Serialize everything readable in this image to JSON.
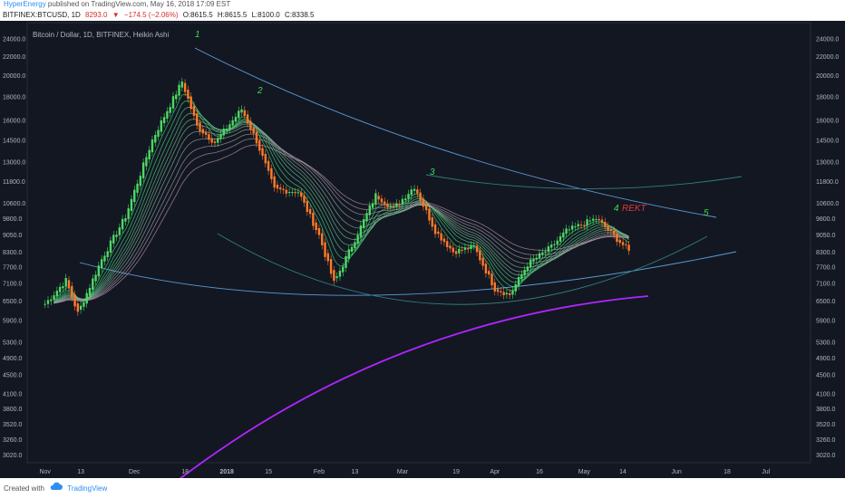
{
  "header": {
    "author": "HyperEnergy",
    "published": "published on TradingView.com, May 16, 2018 17:09 EST"
  },
  "info": {
    "symbol": "BITFINEX:BTCUSD, 1D",
    "price": "8293.0",
    "change": "−174.5 (−2.06%)",
    "open": "O:8615.5",
    "high": "H:8615.5",
    "low": "L:8100.0",
    "close": "C:8338.5"
  },
  "chart": {
    "legend": "Bitcoin / Dollar, 1D, BITFINEX, Heikin Ashi",
    "colors": {
      "background": "#131722",
      "up": "#4cd964",
      "down": "#ff7a29",
      "wave_label": "#3fd94f",
      "rekt": "#e53935",
      "ma200": "#b026ff",
      "trendline": "#5b9bd5",
      "axis_text": "#b2b5be"
    },
    "annotations": [
      {
        "text": "1"
      },
      {
        "text": "2"
      },
      {
        "text": "3"
      },
      {
        "text": "4"
      },
      {
        "text": "5"
      },
      {
        "text": "REKT"
      }
    ]
  },
  "footer": {
    "created_with": "Created with",
    "brand": "TradingView"
  },
  "chart_data": {
    "type": "candlestick",
    "style": "Heikin Ashi",
    "scale": "log",
    "ylim": [
      2900,
      26000
    ],
    "y_ticks": [
      "24000.0",
      "22000.0",
      "20000.0",
      "18000.0",
      "16000.0",
      "14500.0",
      "13000.0",
      "11800.0",
      "10600.0",
      "9800.0",
      "9050.0",
      "8300.0",
      "7700.0",
      "7100.0",
      "6500.0",
      "5900.0",
      "5300.0",
      "4900.0",
      "4500.0",
      "4100.0",
      "3800.0",
      "3520.0",
      "3260.0",
      "3020.0"
    ],
    "x_ticks": [
      "Nov",
      "13",
      "Dec",
      "18",
      "2018",
      "15",
      "Feb",
      "13",
      "Mar",
      "19",
      "Apr",
      "16",
      "May",
      "14",
      "Jun",
      "18",
      "Jul"
    ],
    "closes": [
      {
        "date": "2017-11-01",
        "value": 6400
      },
      {
        "date": "2017-11-08",
        "value": 7200
      },
      {
        "date": "2017-11-12",
        "value": 6100
      },
      {
        "date": "2017-11-20",
        "value": 8000
      },
      {
        "date": "2017-11-28",
        "value": 9900
      },
      {
        "date": "2017-12-07",
        "value": 14500
      },
      {
        "date": "2017-12-12",
        "value": 16800
      },
      {
        "date": "2017-12-17",
        "value": 19400
      },
      {
        "date": "2017-12-22",
        "value": 15500
      },
      {
        "date": "2017-12-28",
        "value": 14300
      },
      {
        "date": "2018-01-06",
        "value": 16900
      },
      {
        "date": "2018-01-11",
        "value": 14400
      },
      {
        "date": "2018-01-17",
        "value": 11300
      },
      {
        "date": "2018-01-25",
        "value": 11200
      },
      {
        "date": "2018-02-01",
        "value": 9000
      },
      {
        "date": "2018-02-06",
        "value": 7100
      },
      {
        "date": "2018-02-11",
        "value": 8300
      },
      {
        "date": "2018-02-20",
        "value": 11000
      },
      {
        "date": "2018-02-26",
        "value": 10300
      },
      {
        "date": "2018-03-05",
        "value": 11500
      },
      {
        "date": "2018-03-12",
        "value": 9200
      },
      {
        "date": "2018-03-18",
        "value": 8300
      },
      {
        "date": "2018-03-25",
        "value": 8500
      },
      {
        "date": "2018-04-01",
        "value": 6900
      },
      {
        "date": "2018-04-06",
        "value": 6700
      },
      {
        "date": "2018-04-12",
        "value": 7800
      },
      {
        "date": "2018-04-20",
        "value": 8500
      },
      {
        "date": "2018-04-25",
        "value": 9200
      },
      {
        "date": "2018-05-05",
        "value": 9800
      },
      {
        "date": "2018-05-10",
        "value": 9100
      },
      {
        "date": "2018-05-16",
        "value": 8338.5
      }
    ],
    "series": [
      {
        "name": "Wave labels",
        "values": [
          "1",
          "2",
          "3",
          "4",
          "5"
        ]
      }
    ]
  }
}
